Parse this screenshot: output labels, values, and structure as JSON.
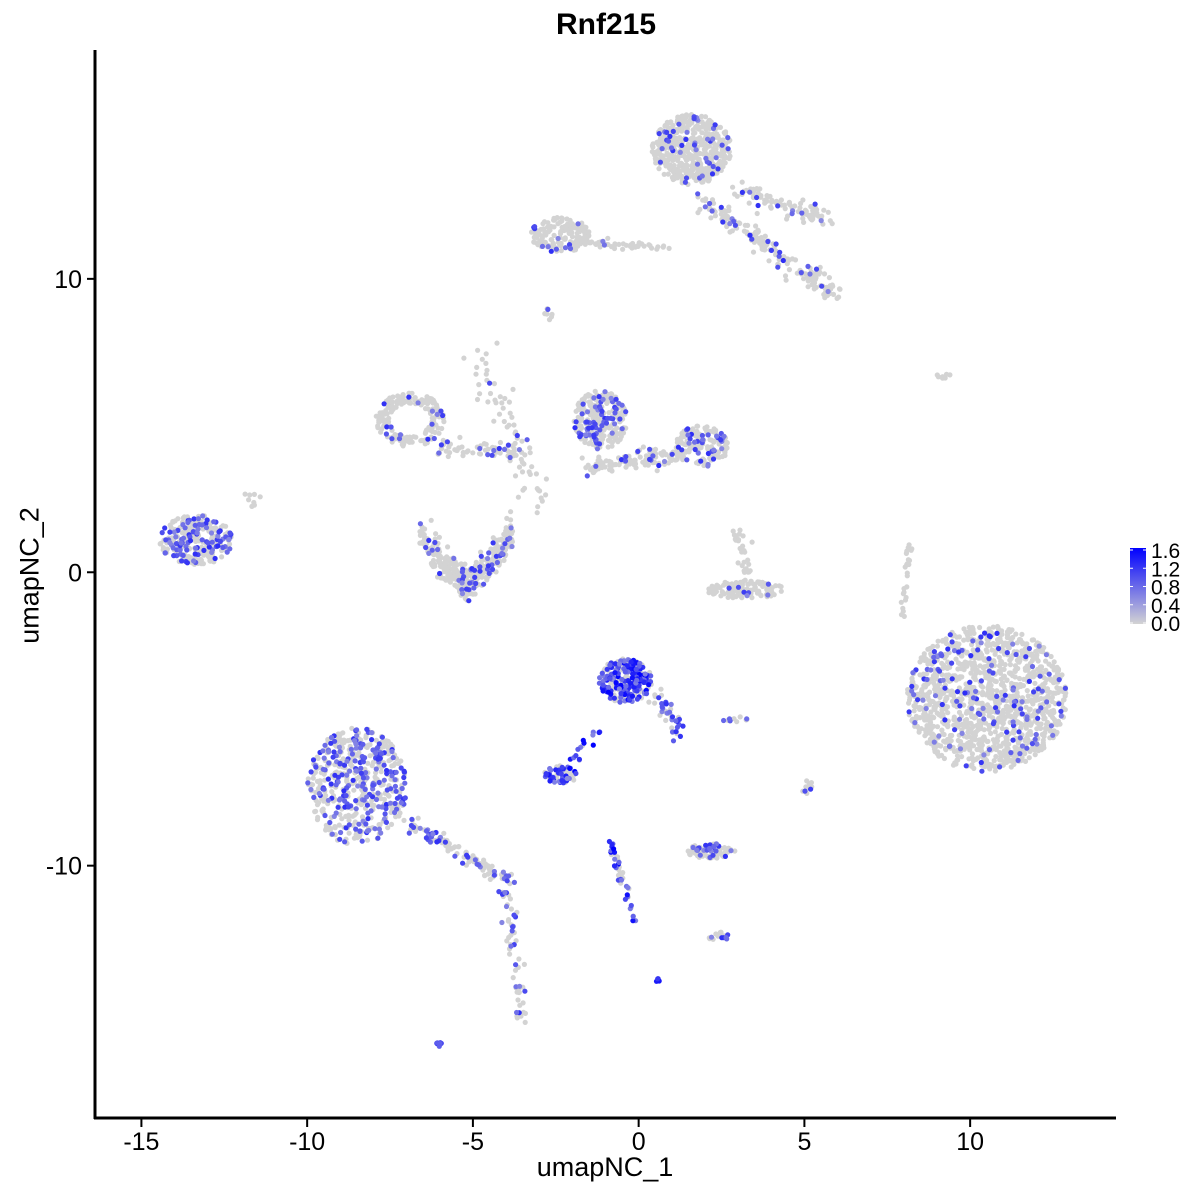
{
  "chart_data": {
    "type": "scatter",
    "title": "Rnf215",
    "xlabel": "umapNC_1",
    "ylabel": "umapNC_2",
    "xlim": [
      -16.4,
      14.4
    ],
    "ylim": [
      -18.6,
      17.8
    ],
    "xticks": [
      -15,
      -10,
      -5,
      0,
      5,
      10
    ],
    "yticks": [
      -10,
      0,
      10
    ],
    "xtick_labels": [
      "-15",
      "-10",
      "-5",
      "0",
      "5",
      "10"
    ],
    "ytick_labels": [
      "-10",
      "0",
      "10"
    ],
    "grid": false,
    "legend": {
      "type": "colorbar",
      "placement": "right",
      "ticks": [
        0.0,
        0.4,
        0.8,
        1.2,
        1.6
      ],
      "tick_labels": [
        "0.0",
        "0.4",
        "0.8",
        "1.2",
        "1.6"
      ],
      "low_color": "#d3d3d3",
      "high_color": "#0000ff",
      "max": 1.6
    },
    "point_groups": [
      {
        "shape": "blob",
        "center": [
          1.6,
          14.4
        ],
        "spread": [
          1.2,
          1.2
        ],
        "n": 500,
        "expr_frac": 0.08
      },
      {
        "shape": "line",
        "from": [
          1.9,
          12.6
        ],
        "to": [
          5.8,
          9.6
        ],
        "spread": 0.35,
        "n": 180,
        "expr_frac": 0.1
      },
      {
        "shape": "line",
        "from": [
          3.0,
          13.0
        ],
        "to": [
          5.8,
          12.0
        ],
        "spread": 0.3,
        "n": 90,
        "expr_frac": 0.08
      },
      {
        "shape": "blob",
        "center": [
          -2.35,
          11.5
        ],
        "spread": [
          0.9,
          0.6
        ],
        "n": 150,
        "expr_frac": 0.1
      },
      {
        "shape": "line",
        "from": [
          -1.5,
          11.2
        ],
        "to": [
          0.8,
          11.1
        ],
        "spread": 0.12,
        "n": 40,
        "expr_frac": 0.05
      },
      {
        "shape": "blob",
        "center": [
          -1.15,
          5.2
        ],
        "spread": [
          0.8,
          1.0
        ],
        "n": 260,
        "expr_frac": 0.25
      },
      {
        "shape": "line",
        "from": [
          -1.5,
          3.6
        ],
        "to": [
          1.2,
          4.0
        ],
        "spread": 0.35,
        "n": 120,
        "expr_frac": 0.1
      },
      {
        "shape": "blob",
        "center": [
          1.9,
          4.3
        ],
        "spread": [
          0.8,
          0.7
        ],
        "n": 160,
        "expr_frac": 0.2
      },
      {
        "shape": "ring",
        "center": [
          -6.9,
          5.2
        ],
        "spread": [
          0.9,
          0.8
        ],
        "n": 180,
        "expr_frac": 0.12
      },
      {
        "shape": "line",
        "from": [
          -6.2,
          4.3
        ],
        "to": [
          -3.5,
          4.0
        ],
        "spread": 0.3,
        "n": 60,
        "expr_frac": 0.15
      },
      {
        "shape": "line",
        "from": [
          -4.9,
          7.6
        ],
        "to": [
          -2.9,
          2.3
        ],
        "spread": 0.5,
        "n": 70,
        "expr_frac": 0.05
      },
      {
        "shape": "ushape",
        "center": [
          -5.2,
          0.4
        ],
        "spread": [
          1.4,
          0.8
        ],
        "n": 380,
        "expr_frac": 0.12
      },
      {
        "shape": "blob",
        "center": [
          -13.35,
          1.1
        ],
        "spread": [
          1.1,
          0.85
        ],
        "n": 280,
        "expr_frac": 0.3
      },
      {
        "shape": "blob",
        "center": [
          3.2,
          -0.6
        ],
        "spread": [
          1.2,
          0.3
        ],
        "n": 120,
        "expr_frac": 0.05
      },
      {
        "shape": "line",
        "from": [
          3.0,
          1.4
        ],
        "to": [
          3.3,
          -0.2
        ],
        "spread": 0.2,
        "n": 30,
        "expr_frac": 0.05
      },
      {
        "shape": "blob",
        "center": [
          10.5,
          -4.3
        ],
        "spread": [
          2.4,
          2.5
        ],
        "n": 1300,
        "expr_frac": 0.1
      },
      {
        "shape": "line",
        "from": [
          8.2,
          1.2
        ],
        "to": [
          7.9,
          -1.6
        ],
        "spread": 0.1,
        "n": 25,
        "expr_frac": 0.0
      },
      {
        "shape": "blob",
        "center": [
          9.3,
          6.7
        ],
        "spread": [
          0.3,
          0.1
        ],
        "n": 8,
        "expr_frac": 0.0
      },
      {
        "shape": "blob",
        "center": [
          -8.5,
          -7.3
        ],
        "spread": [
          1.5,
          2.0
        ],
        "n": 550,
        "expr_frac": 0.35
      },
      {
        "shape": "line",
        "from": [
          -7.0,
          -8.5
        ],
        "to": [
          -3.9,
          -10.5
        ],
        "spread": 0.25,
        "n": 110,
        "expr_frac": 0.35
      },
      {
        "shape": "line",
        "from": [
          -4.0,
          -10.8
        ],
        "to": [
          -3.5,
          -15.2
        ],
        "spread": 0.2,
        "n": 60,
        "expr_frac": 0.4
      },
      {
        "shape": "blob",
        "center": [
          -0.4,
          -3.7
        ],
        "spread": [
          0.8,
          0.75
        ],
        "n": 260,
        "expr_frac": 0.55
      },
      {
        "shape": "line",
        "from": [
          0.4,
          -4.0
        ],
        "to": [
          1.3,
          -5.5
        ],
        "spread": 0.25,
        "n": 40,
        "expr_frac": 0.4
      },
      {
        "shape": "line",
        "from": [
          -1.2,
          -5.4
        ],
        "to": [
          -2.0,
          -6.5
        ],
        "spread": 0.15,
        "n": 15,
        "expr_frac": 0.7
      },
      {
        "shape": "blob",
        "center": [
          -2.35,
          -6.9
        ],
        "spread": [
          0.5,
          0.3
        ],
        "n": 60,
        "expr_frac": 0.5
      },
      {
        "shape": "line",
        "from": [
          -0.9,
          -9.1
        ],
        "to": [
          -0.1,
          -11.9
        ],
        "spread": 0.12,
        "n": 45,
        "expr_frac": 0.5
      },
      {
        "shape": "blob",
        "center": [
          2.2,
          -9.5
        ],
        "spread": [
          0.8,
          0.25
        ],
        "n": 90,
        "expr_frac": 0.25
      },
      {
        "shape": "blob",
        "center": [
          2.4,
          -12.4
        ],
        "spread": [
          0.3,
          0.2
        ],
        "n": 15,
        "expr_frac": 0.3
      },
      {
        "shape": "blob",
        "center": [
          2.9,
          -5.0
        ],
        "spread": [
          0.4,
          0.1
        ],
        "n": 12,
        "expr_frac": 0.4
      },
      {
        "shape": "blob",
        "center": [
          5.1,
          -7.4
        ],
        "spread": [
          0.15,
          0.4
        ],
        "n": 12,
        "expr_frac": 0.2
      },
      {
        "shape": "blob",
        "center": [
          -6.0,
          -16.1
        ],
        "spread": [
          0.15,
          0.08
        ],
        "n": 8,
        "expr_frac": 1.0
      },
      {
        "shape": "blob",
        "center": [
          0.57,
          -13.9
        ],
        "spread": [
          0.08,
          0.05
        ],
        "n": 4,
        "expr_frac": 1.0
      },
      {
        "shape": "blob",
        "center": [
          -2.7,
          8.8
        ],
        "spread": [
          0.2,
          0.2
        ],
        "n": 8,
        "expr_frac": 0.2
      },
      {
        "shape": "blob",
        "center": [
          -11.7,
          2.5
        ],
        "spread": [
          0.3,
          0.3
        ],
        "n": 8,
        "expr_frac": 0.0
      }
    ]
  }
}
